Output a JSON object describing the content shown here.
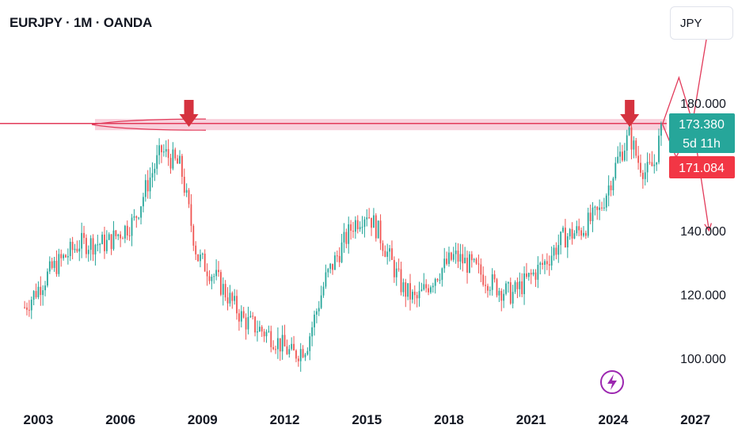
{
  "header": {
    "title": "EURJPY · 1M · OANDA"
  },
  "currency_button": {
    "label": "JPY"
  },
  "price_labels": {
    "current_price": "173.380",
    "countdown": "5d 11h",
    "secondary_price": "171.084"
  },
  "colors": {
    "up": "#26a69a",
    "down": "#ef5350",
    "annotation": "#e23a5a",
    "zone_fill": "#f7c9d6",
    "arrow": "#d5323f",
    "current_badge": "#26a69a",
    "secondary_badge": "#f23645",
    "lightning_badge": "#9c27b0"
  },
  "icons": {
    "lightning": "lightning-icon",
    "marker": "down-arrow-icon"
  },
  "chart_data": {
    "type": "candlestick",
    "instrument": "EURJPY",
    "timeframe": "1M",
    "source": "OANDA",
    "x_ticks": [
      "2003",
      "2006",
      "2009",
      "2012",
      "2015",
      "2018",
      "2021",
      "2024",
      "2027"
    ],
    "y_ticks": [
      "100.000",
      "120.000",
      "140.000",
      "180.000"
    ],
    "y_tick_values": [
      100,
      120,
      140,
      180
    ],
    "ylim": [
      88,
      205
    ],
    "xlim": [
      2001.6,
      2028.5
    ],
    "resistance_zone": [
      171.5,
      175.0
    ],
    "series": {
      "x": [
        2002.5,
        2003.5,
        2004.5,
        2005.5,
        2006.5,
        2007.0,
        2007.5,
        2008.2,
        2008.8,
        2009.5,
        2010.5,
        2011.5,
        2012.3,
        2012.8,
        2013.5,
        2014.5,
        2015.0,
        2015.4,
        2016.3,
        2016.8,
        2017.5,
        2018.2,
        2018.8,
        2019.8,
        2020.3,
        2020.8,
        2021.5,
        2022.2,
        2022.8,
        2023.5,
        2024.2,
        2024.6,
        2024.9,
        2025.2,
        2025.5,
        2025.8
      ],
      "y": [
        116,
        128,
        136,
        136,
        143,
        155,
        165,
        160,
        132,
        125,
        112,
        107,
        101,
        104,
        125,
        142,
        146,
        140,
        122,
        118,
        126,
        132,
        129,
        122,
        120,
        124,
        130,
        138,
        140,
        146,
        163,
        170,
        162,
        158,
        161,
        173.38
      ]
    },
    "marked_peaks": [
      {
        "x": 2008.5,
        "y": 171
      },
      {
        "x": 2024.6,
        "y": 172
      }
    ],
    "projection_paths": [
      [
        [
          2025.8,
          173.4
        ],
        [
          2026.4,
          188
        ],
        [
          2026.9,
          174
        ],
        [
          2027.5,
          205
        ]
      ],
      [
        [
          2025.8,
          173.4
        ],
        [
          2026.3,
          163
        ],
        [
          2026.9,
          174
        ],
        [
          2027.5,
          140
        ]
      ]
    ]
  }
}
